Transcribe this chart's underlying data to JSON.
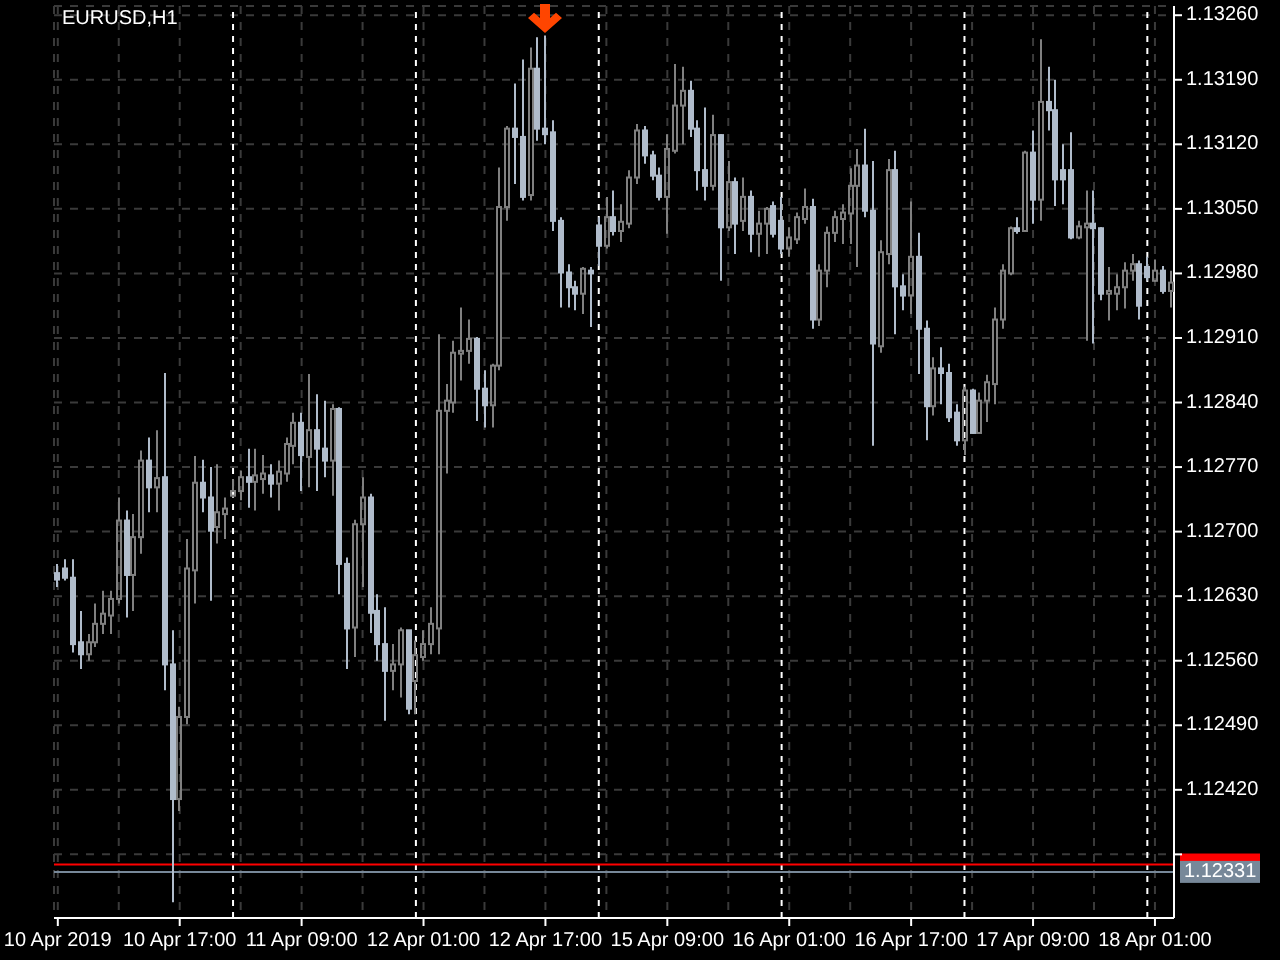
{
  "chart_data": {
    "type": "candlestick",
    "title": "EURUSD,H1",
    "categories": [
      "10 Apr 2019",
      null,
      null,
      null,
      null,
      null,
      null,
      null,
      null,
      null,
      null,
      null,
      null,
      null,
      null,
      null,
      "10 Apr 17:00",
      null,
      null,
      null,
      null,
      null,
      null,
      null,
      null,
      null,
      null,
      null,
      null,
      null,
      null,
      null,
      "11 Apr 09:00",
      null,
      null,
      null,
      null,
      null,
      null,
      null,
      null,
      null,
      null,
      null,
      null,
      null,
      null,
      null,
      "12 Apr 01:00",
      null,
      null,
      null,
      null,
      null,
      null,
      null,
      null,
      null,
      null,
      null,
      null,
      null,
      null,
      null,
      "12 Apr 17:00",
      null,
      null,
      null,
      null,
      null,
      null,
      null,
      null,
      null,
      null,
      null,
      null,
      null,
      null,
      null,
      "15 Apr 09:00",
      null,
      null,
      null,
      null,
      null,
      null,
      null,
      null,
      null,
      null,
      null,
      null,
      null,
      null,
      null,
      "16 Apr 01:00",
      null,
      null,
      null,
      null,
      null,
      null,
      null,
      null,
      null,
      null,
      null,
      null,
      null,
      null,
      null,
      "16 Apr 17:00",
      null,
      null,
      null,
      null,
      null,
      null,
      null,
      null,
      null,
      null,
      null,
      null,
      null,
      null,
      null,
      "17 Apr 09:00",
      null,
      null,
      null,
      null,
      null,
      null,
      null,
      null,
      null,
      null,
      null,
      null,
      null,
      null,
      null,
      "18 Apr 01:00",
      null,
      null
    ],
    "ohlc": [
      [
        1.12655,
        1.12665,
        1.1264,
        1.12648
      ],
      [
        1.1266,
        1.1267,
        1.12647,
        1.1265
      ],
      [
        1.1265,
        1.1267,
        1.12569,
        1.12578
      ],
      [
        1.1258,
        1.12614,
        1.12551,
        1.12567
      ],
      [
        1.12567,
        1.12589,
        1.1256,
        1.1258
      ],
      [
        1.1258,
        1.12622,
        1.12575,
        1.126
      ],
      [
        1.126,
        1.12636,
        1.12589,
        1.12611
      ],
      [
        1.12609,
        1.12636,
        1.12589,
        1.12627
      ],
      [
        1.12627,
        1.12737,
        1.12622,
        1.12712
      ],
      [
        1.12712,
        1.12723,
        1.12607,
        1.12653
      ],
      [
        1.12653,
        1.12719,
        1.12614,
        1.12694
      ],
      [
        1.12694,
        1.12788,
        1.12676,
        1.12777
      ],
      [
        1.12777,
        1.12802,
        1.12721,
        1.12748
      ],
      [
        1.12748,
        1.1281,
        1.12721,
        1.12758
      ],
      [
        1.12759,
        1.12872,
        1.12528,
        1.12556
      ],
      [
        1.12556,
        1.12593,
        1.12298,
        1.1241
      ],
      [
        1.1241,
        1.1251,
        1.12397,
        1.12499
      ],
      [
        1.12499,
        1.12692,
        1.12491,
        1.1266
      ],
      [
        1.12658,
        1.12782,
        1.12622,
        1.12753
      ],
      [
        1.12753,
        1.12778,
        1.12721,
        1.12737
      ],
      [
        1.12737,
        1.1277,
        1.12625,
        1.12701
      ],
      [
        1.12705,
        1.12773,
        1.12687,
        1.12721
      ],
      [
        1.12719,
        1.12737,
        1.12692,
        1.12725
      ],
      [
        1.12739,
        1.12757,
        1.12737,
        1.12744
      ],
      [
        1.12744,
        1.12766,
        1.12734,
        1.12759
      ],
      [
        1.12759,
        1.1279,
        1.12726,
        1.12754
      ],
      [
        1.12754,
        1.1279,
        1.12723,
        1.12761
      ],
      [
        1.12757,
        1.12783,
        1.12741,
        1.12763
      ],
      [
        1.12761,
        1.12773,
        1.12737,
        1.12752
      ],
      [
        1.12752,
        1.12777,
        1.12723,
        1.12765
      ],
      [
        1.12763,
        1.12802,
        1.12754,
        1.12795
      ],
      [
        1.12793,
        1.12829,
        1.12773,
        1.12818
      ],
      [
        1.12818,
        1.12829,
        1.12744,
        1.12783
      ],
      [
        1.12781,
        1.12871,
        1.12748,
        1.1281
      ],
      [
        1.1281,
        1.12849,
        1.12744,
        1.1279
      ],
      [
        1.1279,
        1.12842,
        1.12759,
        1.12777
      ],
      [
        1.12777,
        1.12838,
        1.12739,
        1.12833
      ],
      [
        1.12833,
        1.12835,
        1.12632,
        1.12665
      ],
      [
        1.12665,
        1.12672,
        1.12551,
        1.12595
      ],
      [
        1.12596,
        1.12713,
        1.12564,
        1.12708
      ],
      [
        1.12708,
        1.12759,
        1.1264,
        1.12737
      ],
      [
        1.12737,
        1.12741,
        1.1259,
        1.12612
      ],
      [
        1.12614,
        1.12632,
        1.1256,
        1.12578
      ],
      [
        1.12578,
        1.12618,
        1.12495,
        1.12549
      ],
      [
        1.12549,
        1.12578,
        1.12528,
        1.12556
      ],
      [
        1.12556,
        1.12596,
        1.1252,
        1.12593
      ],
      [
        1.12593,
        1.12593,
        1.12502,
        1.12508
      ],
      [
        1.12538,
        1.12582,
        1.12502,
        1.12566
      ],
      [
        1.12564,
        1.12593,
        1.1256,
        1.12578
      ],
      [
        1.12578,
        1.12618,
        1.12567,
        1.126
      ],
      [
        1.12595,
        1.12914,
        1.12567,
        1.12831
      ],
      [
        1.12831,
        1.1286,
        1.12763,
        1.12842
      ],
      [
        1.1284,
        1.12907,
        1.12829,
        1.12894
      ],
      [
        1.12893,
        1.12943,
        1.12864,
        1.12896
      ],
      [
        1.12896,
        1.1293,
        1.12882,
        1.12909
      ],
      [
        1.12909,
        1.12911,
        1.1282,
        1.12855
      ],
      [
        1.12855,
        1.12875,
        1.12813,
        1.12837
      ],
      [
        1.12837,
        1.12882,
        1.12813,
        1.1288
      ],
      [
        1.1288,
        1.13095,
        1.12875,
        1.13052
      ],
      [
        1.13052,
        1.1314,
        1.13037,
        1.13137
      ],
      [
        1.13137,
        1.13186,
        1.13077,
        1.13128
      ],
      [
        1.13128,
        1.13212,
        1.13059,
        1.13063
      ],
      [
        1.13065,
        1.13225,
        1.13059,
        1.13202
      ],
      [
        1.13202,
        1.13236,
        1.13124,
        1.13137
      ],
      [
        1.13137,
        1.13238,
        1.1312,
        1.13131
      ],
      [
        1.13133,
        1.13146,
        1.13026,
        1.13037
      ],
      [
        1.13037,
        1.13041,
        1.12943,
        1.12981
      ],
      [
        1.12981,
        1.1299,
        1.12943,
        1.12965
      ],
      [
        1.12965,
        1.12972,
        1.1294,
        1.12958
      ],
      [
        1.12958,
        1.12987,
        1.12936,
        1.12985
      ],
      [
        1.12983,
        1.12987,
        1.12922,
        1.1298
      ],
      [
        1.13032,
        1.13041,
        1.12988,
        1.1301
      ],
      [
        1.1301,
        1.13063,
        1.13007,
        1.13041
      ],
      [
        1.13041,
        1.1307,
        1.13021,
        1.13026
      ],
      [
        1.13026,
        1.13055,
        1.13014,
        1.13036
      ],
      [
        1.13034,
        1.13092,
        1.13029,
        1.13084
      ],
      [
        1.13084,
        1.13142,
        1.13077,
        1.13135
      ],
      [
        1.13135,
        1.1314,
        1.13099,
        1.13108
      ],
      [
        1.13108,
        1.13113,
        1.13081,
        1.13086
      ],
      [
        1.13086,
        1.13095,
        1.13059,
        1.13063
      ],
      [
        1.13063,
        1.13131,
        1.13023,
        1.13115
      ],
      [
        1.13113,
        1.13207,
        1.1311,
        1.13162
      ],
      [
        1.13162,
        1.13204,
        1.1312,
        1.13178
      ],
      [
        1.13178,
        1.13189,
        1.13128,
        1.13137
      ],
      [
        1.13137,
        1.13146,
        1.1307,
        1.13092
      ],
      [
        1.13092,
        1.1316,
        1.13059,
        1.13075
      ],
      [
        1.13075,
        1.13152,
        1.1307,
        1.1313
      ],
      [
        1.1313,
        1.13131,
        1.12972,
        1.1303
      ],
      [
        1.1303,
        1.13102,
        1.13026,
        1.13079
      ],
      [
        1.13079,
        1.13084,
        1.13001,
        1.13034
      ],
      [
        1.13037,
        1.13084,
        1.13026,
        1.13063
      ],
      [
        1.13063,
        1.1307,
        1.13003,
        1.13023
      ],
      [
        1.13023,
        1.13048,
        1.12998,
        1.13034
      ],
      [
        1.13034,
        1.13052,
        1.13001,
        1.1305
      ],
      [
        1.13053,
        1.13058,
        1.13019,
        1.13023
      ],
      [
        1.13037,
        1.13063,
        1.13001,
        1.13007
      ],
      [
        1.13007,
        1.1303,
        1.12998,
        1.13019
      ],
      [
        1.13017,
        1.13046,
        1.13012,
        1.13041
      ],
      [
        1.13039,
        1.13072,
        1.13034,
        1.13052
      ],
      [
        1.13052,
        1.13061,
        1.1292,
        1.1293
      ],
      [
        1.1293,
        1.1299,
        1.12923,
        1.12983
      ],
      [
        1.12983,
        1.13031,
        1.12965,
        1.13024
      ],
      [
        1.13024,
        1.13048,
        1.13014,
        1.13041
      ],
      [
        1.13039,
        1.13055,
        1.13012,
        1.13046
      ],
      [
        1.13045,
        1.13094,
        1.13012,
        1.13075
      ],
      [
        1.13075,
        1.13115,
        1.12987,
        1.13097
      ],
      [
        1.13097,
        1.13137,
        1.13041,
        1.13048
      ],
      [
        1.13048,
        1.13102,
        1.12793,
        1.12904
      ],
      [
        1.12901,
        1.13016,
        1.12894,
        1.13003
      ],
      [
        1.13001,
        1.13104,
        1.1299,
        1.13092
      ],
      [
        1.13092,
        1.13113,
        1.12914,
        1.12966
      ],
      [
        1.12966,
        1.12979,
        1.1294,
        1.12956
      ],
      [
        1.12956,
        1.13058,
        1.12936,
        1.12998
      ],
      [
        1.12998,
        1.13024,
        1.12871,
        1.1292
      ],
      [
        1.1292,
        1.12929,
        1.12799,
        1.12836
      ],
      [
        1.12836,
        1.12889,
        1.12826,
        1.12877
      ],
      [
        1.12877,
        1.129,
        1.12838,
        1.12872
      ],
      [
        1.12872,
        1.12882,
        1.12819,
        1.12824
      ],
      [
        1.12829,
        1.12838,
        1.12793,
        1.12799
      ],
      [
        1.12799,
        1.12857,
        1.12783,
        1.12853
      ],
      [
        1.12853,
        1.12855,
        1.12806,
        1.12807
      ],
      [
        1.12807,
        1.12851,
        1.12806,
        1.12842
      ],
      [
        1.12842,
        1.1287,
        1.12819,
        1.12862
      ],
      [
        1.1286,
        1.12943,
        1.12838,
        1.1293
      ],
      [
        1.1293,
        1.1299,
        1.1292,
        1.12983
      ],
      [
        1.1298,
        1.13031,
        1.12978,
        1.13029
      ],
      [
        1.13029,
        1.13041,
        1.13023,
        1.13026
      ],
      [
        1.13026,
        1.13113,
        1.13026,
        1.13111
      ],
      [
        1.13111,
        1.13135,
        1.13034,
        1.1306
      ],
      [
        1.1306,
        1.13234,
        1.13037,
        1.13166
      ],
      [
        1.13166,
        1.13204,
        1.13135,
        1.13157
      ],
      [
        1.13157,
        1.1319,
        1.13053,
        1.13082
      ],
      [
        1.13092,
        1.1312,
        1.13055,
        1.13082
      ],
      [
        1.13092,
        1.13133,
        1.13017,
        1.13019
      ],
      [
        1.13019,
        1.13037,
        1.13017,
        1.13031
      ],
      [
        1.1303,
        1.1307,
        1.12907,
        1.13034
      ],
      [
        1.13034,
        1.1307,
        1.12904,
        1.13029
      ],
      [
        1.13029,
        1.1303,
        1.12951,
        1.12958
      ],
      [
        1.12958,
        1.12987,
        1.12929,
        1.12961
      ],
      [
        1.12958,
        1.12979,
        1.1294,
        1.12965
      ],
      [
        1.12965,
        1.12992,
        1.12942,
        1.12983
      ],
      [
        1.12983,
        1.13001,
        1.12972,
        1.1299
      ],
      [
        1.1299,
        1.12994,
        1.1293,
        1.12945
      ],
      [
        1.12987,
        1.12998,
        1.12972,
        1.12976
      ],
      [
        1.12972,
        1.12995,
        1.12971,
        1.12983
      ],
      [
        1.12983,
        1.12988,
        1.12958,
        1.12961
      ],
      [
        1.12961,
        1.12983,
        1.12943,
        1.1297
      ]
    ],
    "colors": [
      "#b0bccb",
      "#b0bccb",
      "#b0bccb",
      "#b0bccb",
      "#808080",
      "#808080",
      "#808080",
      "#808080",
      "#808080",
      "#b0bccb",
      "#808080",
      "#808080",
      "#b0bccb",
      "#808080",
      "#b0bccb",
      "#b0bccb",
      "#808080",
      "#808080",
      "#808080",
      "#b0bccb",
      "#b0bccb",
      "#808080",
      "#808080",
      "#808080",
      "#808080",
      "#b0bccb",
      "#808080",
      "#808080",
      "#b0bccb",
      "#808080",
      "#808080",
      "#808080",
      "#b0bccb",
      "#808080",
      "#b0bccb",
      "#b0bccb",
      "#808080",
      "#b0bccb",
      "#b0bccb",
      "#808080",
      "#808080",
      "#b0bccb",
      "#b0bccb",
      "#b0bccb",
      "#808080",
      "#808080",
      "#b0bccb",
      "#808080",
      "#808080",
      "#808080",
      "#808080",
      "#808080",
      "#808080",
      "#808080",
      "#808080",
      "#b0bccb",
      "#b0bccb",
      "#808080",
      "#808080",
      "#808080",
      "#b0bccb",
      "#b0bccb",
      "#808080",
      "#b0bccb",
      "#b0bccb",
      "#b0bccb",
      "#b0bccb",
      "#b0bccb",
      "#b0bccb",
      "#808080",
      "#b0bccb",
      "#b0bccb",
      "#808080",
      "#b0bccb",
      "#808080",
      "#808080",
      "#808080",
      "#b0bccb",
      "#b0bccb",
      "#b0bccb",
      "#808080",
      "#808080",
      "#808080",
      "#b0bccb",
      "#b0bccb",
      "#b0bccb",
      "#808080",
      "#b0bccb",
      "#808080",
      "#b0bccb",
      "#808080",
      "#b0bccb",
      "#808080",
      "#808080",
      "#b0bccb",
      "#b0bccb",
      "#808080",
      "#808080",
      "#808080",
      "#b0bccb",
      "#808080",
      "#808080",
      "#808080",
      "#808080",
      "#808080",
      "#808080",
      "#b0bccb",
      "#b0bccb",
      "#808080",
      "#808080",
      "#b0bccb",
      "#b0bccb",
      "#808080",
      "#b0bccb",
      "#b0bccb",
      "#808080",
      "#b0bccb",
      "#b0bccb",
      "#b0bccb",
      "#808080",
      "#b0bccb",
      "#808080",
      "#808080",
      "#808080",
      "#808080",
      "#808080",
      "#b0bccb",
      "#808080",
      "#b0bccb",
      "#808080",
      "#b0bccb",
      "#b0bccb",
      "#b0bccb",
      "#b0bccb",
      "#808080",
      "#808080",
      "#b0bccb",
      "#b0bccb",
      "#808080",
      "#808080",
      "#808080",
      "#808080",
      "#b0bccb",
      "#b0bccb",
      "#808080",
      "#b0bccb",
      "#808080"
    ],
    "ylim": [
      1.12281,
      1.1327
    ],
    "yticks": [
      {
        "value": 1.1326,
        "label": "1.13260"
      },
      {
        "value": 1.1319,
        "label": "1.13190"
      },
      {
        "value": 1.1312,
        "label": "1.13120"
      },
      {
        "value": 1.1305,
        "label": "1.13050"
      },
      {
        "value": 1.1298,
        "label": "1.12980"
      },
      {
        "value": 1.1291,
        "label": "1.12910"
      },
      {
        "value": 1.1284,
        "label": "1.12840"
      },
      {
        "value": 1.1277,
        "label": "1.12770"
      },
      {
        "value": 1.127,
        "label": "1.12700"
      },
      {
        "value": 1.1263,
        "label": "1.12630"
      },
      {
        "value": 1.1256,
        "label": "1.12560"
      },
      {
        "value": 1.1249,
        "label": "1.12490"
      },
      {
        "value": 1.1242,
        "label": "1.12420"
      },
      {
        "value": 1.1235,
        "label": null
      }
    ],
    "grid": true,
    "ref_lines": [
      {
        "axis": "y",
        "value": 1.12339,
        "color": "#ff0000"
      },
      {
        "axis": "y",
        "value": 1.12331,
        "label": "1.12331",
        "color": "#778899"
      }
    ]
  }
}
